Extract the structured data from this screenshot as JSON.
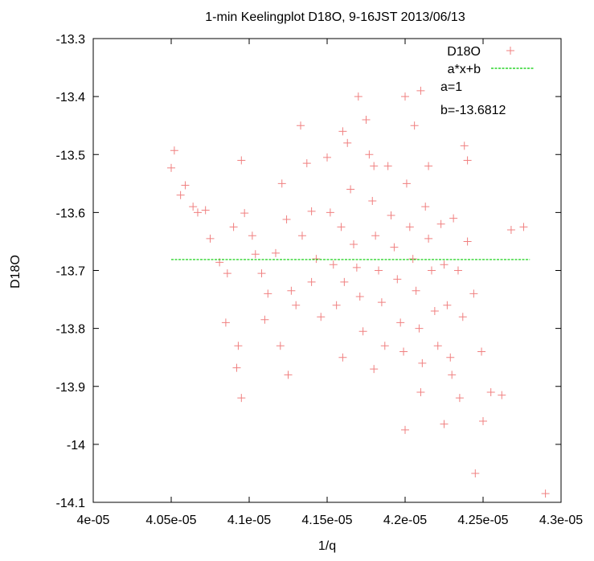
{
  "chart_data": {
    "type": "scatter",
    "title": "1-min Keelingplot D18O, 9-16JST 2013/06/13",
    "xlabel": "1/q",
    "ylabel": "D18O",
    "xlim": [
      4e-05,
      4.3e-05
    ],
    "ylim": [
      -14.1,
      -13.3
    ],
    "x_ticks": [
      "4e-05",
      "4.05e-05",
      "4.1e-05",
      "4.15e-05",
      "4.2e-05",
      "4.25e-05",
      "4.3e-05"
    ],
    "y_ticks": [
      "-13.3",
      "-13.4",
      "-13.5",
      "-13.6",
      "-13.7",
      "-13.8",
      "-13.9",
      "-14",
      "-14.1"
    ],
    "grid": false,
    "legend_position": "top-right",
    "series": [
      {
        "name": "D18O",
        "kind": "points",
        "color": "#f08080",
        "marker": "plus",
        "points": [
          [
            4.05e-05,
            -13.523
          ],
          [
            4.056e-05,
            -13.57
          ],
          [
            4.059e-05,
            -13.553
          ],
          [
            4.064e-05,
            -13.59
          ],
          [
            4.072e-05,
            -13.596
          ],
          [
            4.075e-05,
            -13.645
          ],
          [
            4.081e-05,
            -13.686
          ],
          [
            4.086e-05,
            -13.705
          ],
          [
            4.09e-05,
            -13.625
          ],
          [
            4.095e-05,
            -13.51
          ],
          [
            4.097e-05,
            -13.601
          ],
          [
            4.102e-05,
            -13.64
          ],
          [
            4.104e-05,
            -13.672
          ],
          [
            4.108e-05,
            -13.705
          ],
          [
            4.11e-05,
            -13.785
          ],
          [
            4.112e-05,
            -13.74
          ],
          [
            4.117e-05,
            -13.67
          ],
          [
            4.121e-05,
            -13.55
          ],
          [
            4.124e-05,
            -13.612
          ],
          [
            4.127e-05,
            -13.735
          ],
          [
            4.13e-05,
            -13.76
          ],
          [
            4.134e-05,
            -13.64
          ],
          [
            4.137e-05,
            -13.515
          ],
          [
            4.14e-05,
            -13.598
          ],
          [
            4.143e-05,
            -13.68
          ],
          [
            4.146e-05,
            -13.78
          ],
          [
            4.15e-05,
            -13.505
          ],
          [
            4.152e-05,
            -13.6
          ],
          [
            4.154e-05,
            -13.69
          ],
          [
            4.156e-05,
            -13.76
          ],
          [
            4.159e-05,
            -13.625
          ],
          [
            4.161e-05,
            -13.72
          ],
          [
            4.163e-05,
            -13.48
          ],
          [
            4.165e-05,
            -13.56
          ],
          [
            4.167e-05,
            -13.655
          ],
          [
            4.169e-05,
            -13.695
          ],
          [
            4.171e-05,
            -13.745
          ],
          [
            4.173e-05,
            -13.805
          ],
          [
            4.175e-05,
            -13.44
          ],
          [
            4.177e-05,
            -13.5
          ],
          [
            4.179e-05,
            -13.58
          ],
          [
            4.181e-05,
            -13.64
          ],
          [
            4.183e-05,
            -13.7
          ],
          [
            4.185e-05,
            -13.755
          ],
          [
            4.187e-05,
            -13.83
          ],
          [
            4.189e-05,
            -13.52
          ],
          [
            4.191e-05,
            -13.605
          ],
          [
            4.193e-05,
            -13.66
          ],
          [
            4.195e-05,
            -13.715
          ],
          [
            4.197e-05,
            -13.79
          ],
          [
            4.199e-05,
            -13.84
          ],
          [
            4.201e-05,
            -13.55
          ],
          [
            4.203e-05,
            -13.625
          ],
          [
            4.205e-05,
            -13.68
          ],
          [
            4.207e-05,
            -13.735
          ],
          [
            4.209e-05,
            -13.8
          ],
          [
            4.211e-05,
            -13.86
          ],
          [
            4.213e-05,
            -13.59
          ],
          [
            4.215e-05,
            -13.645
          ],
          [
            4.217e-05,
            -13.7
          ],
          [
            4.219e-05,
            -13.77
          ],
          [
            4.221e-05,
            -13.83
          ],
          [
            4.223e-05,
            -13.62
          ],
          [
            4.225e-05,
            -13.69
          ],
          [
            4.227e-05,
            -13.76
          ],
          [
            4.229e-05,
            -13.85
          ],
          [
            4.231e-05,
            -13.61
          ],
          [
            4.234e-05,
            -13.7
          ],
          [
            4.237e-05,
            -13.78
          ],
          [
            4.24e-05,
            -13.65
          ],
          [
            4.244e-05,
            -13.74
          ],
          [
            4.249e-05,
            -13.84
          ],
          [
            4.255e-05,
            -13.91
          ],
          [
            4.262e-05,
            -13.915
          ],
          [
            4.268e-05,
            -13.63
          ],
          [
            4.276e-05,
            -13.625
          ],
          [
            4.29e-05,
            -14.085
          ],
          [
            4.245e-05,
            -14.05
          ],
          [
            4.25e-05,
            -13.96
          ],
          [
            4.225e-05,
            -13.965
          ],
          [
            4.235e-05,
            -13.92
          ],
          [
            4.23e-05,
            -13.88
          ],
          [
            4.21e-05,
            -13.91
          ],
          [
            4.2e-05,
            -13.975
          ],
          [
            4.18e-05,
            -13.87
          ],
          [
            4.16e-05,
            -13.85
          ],
          [
            4.14e-05,
            -13.72
          ],
          [
            4.12e-05,
            -13.83
          ],
          [
            4.125e-05,
            -13.88
          ],
          [
            4.095e-05,
            -13.92
          ],
          [
            4.092e-05,
            -13.868
          ],
          [
            4.093e-05,
            -13.83
          ],
          [
            4.085e-05,
            -13.79
          ],
          [
            4.2e-05,
            -13.4
          ],
          [
            4.21e-05,
            -13.39
          ],
          [
            4.206e-05,
            -13.45
          ],
          [
            4.215e-05,
            -13.52
          ],
          [
            4.17e-05,
            -13.4
          ],
          [
            4.16e-05,
            -13.46
          ],
          [
            4.133e-05,
            -13.45
          ],
          [
            4.052e-05,
            -13.493
          ],
          [
            4.067e-05,
            -13.6
          ],
          [
            4.238e-05,
            -13.485
          ],
          [
            4.24e-05,
            -13.51
          ],
          [
            4.18e-05,
            -13.52
          ]
        ]
      },
      {
        "name": "a*x+b",
        "kind": "line",
        "color": "#00cc00",
        "dash": true,
        "x": [
          4.05e-05,
          4.28e-05
        ],
        "y": [
          -13.6812,
          -13.6812
        ]
      }
    ],
    "annotations": [
      "a=1",
      "b=-13.6812"
    ]
  }
}
